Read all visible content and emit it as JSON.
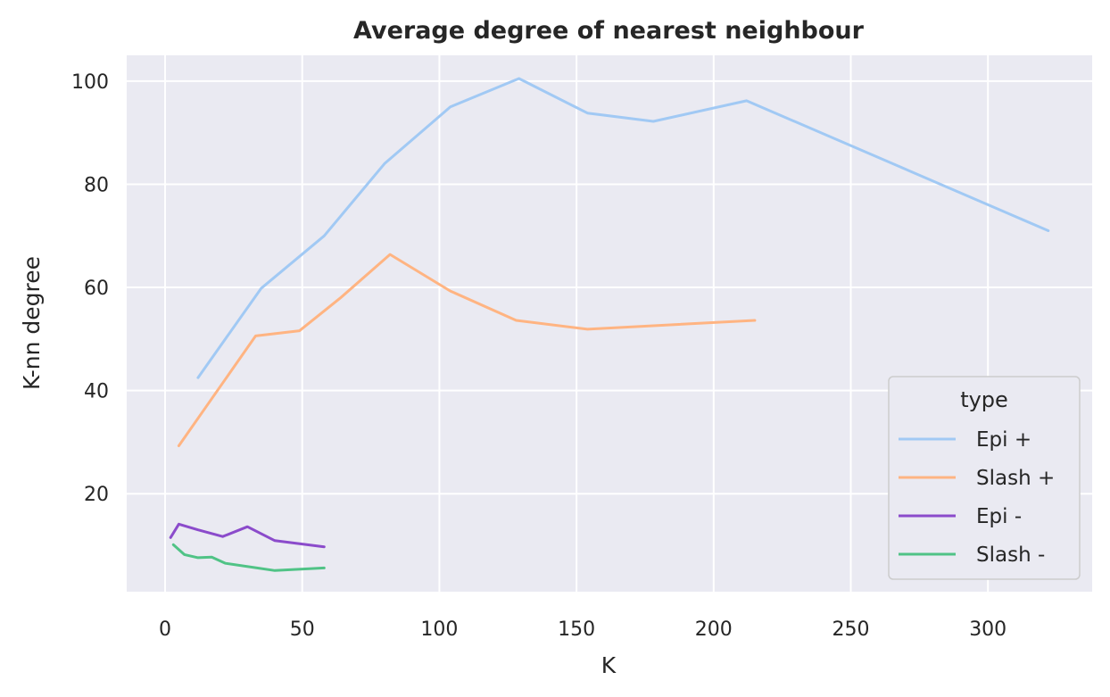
{
  "chart_data": {
    "type": "line",
    "title": "Average degree of nearest neighbour",
    "xlabel": "K",
    "ylabel": "K-nn degree",
    "xlim": [
      -14,
      338
    ],
    "ylim": [
      1,
      105
    ],
    "xticks": [
      0,
      50,
      100,
      150,
      200,
      250,
      300
    ],
    "yticks": [
      20,
      40,
      60,
      80,
      100
    ],
    "grid": true,
    "background": "#eaeaf2",
    "grid_color": "#ffffff",
    "legend": {
      "title": "type",
      "placement": "lower-right"
    },
    "series": [
      {
        "name": "Epi +",
        "color": "#a1c9f4",
        "points": [
          [
            12,
            42.5
          ],
          [
            35,
            59.8
          ],
          [
            58,
            70
          ],
          [
            80,
            84
          ],
          [
            104,
            95
          ],
          [
            129,
            100.5
          ],
          [
            154,
            93.8
          ],
          [
            178,
            92.2
          ],
          [
            212,
            96.2
          ],
          [
            322,
            71
          ]
        ]
      },
      {
        "name": "Slash +",
        "color": "#ffb482",
        "points": [
          [
            5,
            29.3
          ],
          [
            33,
            50.6
          ],
          [
            49,
            51.6
          ],
          [
            64,
            58
          ],
          [
            82,
            66.4
          ],
          [
            104,
            59.3
          ],
          [
            128,
            53.6
          ],
          [
            154,
            51.9
          ],
          [
            215,
            53.6
          ]
        ]
      },
      {
        "name": "Epi -",
        "color": "#8b4bcb",
        "points": [
          [
            2,
            11.5
          ],
          [
            5,
            14.1
          ],
          [
            12,
            13
          ],
          [
            21,
            11.7
          ],
          [
            30,
            13.6
          ],
          [
            40,
            10.9
          ],
          [
            58,
            9.7
          ]
        ]
      },
      {
        "name": "Slash -",
        "color": "#50c386",
        "points": [
          [
            3,
            10.1
          ],
          [
            7,
            8.2
          ],
          [
            12,
            7.6
          ],
          [
            17,
            7.7
          ],
          [
            22,
            6.5
          ],
          [
            40,
            5.1
          ],
          [
            58,
            5.6
          ]
        ]
      }
    ]
  }
}
